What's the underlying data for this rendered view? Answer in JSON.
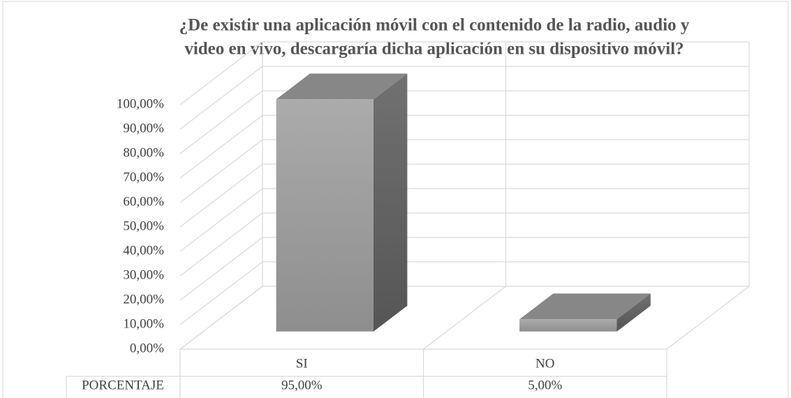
{
  "chart_data": {
    "type": "bar3d",
    "title": [
      "¿De existir una aplicación móvil con el contenido de la radio, audio y",
      "video en vivo, descargaría dicha aplicación en su dispositivo móvil?"
    ],
    "categories": [
      "SI",
      "NO"
    ],
    "series": [
      {
        "name": "PORCENTAJE",
        "color": "#999999",
        "values": [
          95,
          5
        ],
        "value_labels": [
          "95,00%",
          "5,00%"
        ]
      }
    ],
    "ylim": [
      0,
      100
    ],
    "yticks": [
      {
        "value": 0,
        "label": "0,00%"
      },
      {
        "value": 10,
        "label": "10,00%"
      },
      {
        "value": 20,
        "label": "20,00%"
      },
      {
        "value": 30,
        "label": "30,00%"
      },
      {
        "value": 40,
        "label": "40,00%"
      },
      {
        "value": 50,
        "label": "50,00%"
      },
      {
        "value": 60,
        "label": "60,00%"
      },
      {
        "value": 70,
        "label": "70,00%"
      },
      {
        "value": 80,
        "label": "80,00%"
      },
      {
        "value": 90,
        "label": "90,00%"
      },
      {
        "value": 100,
        "label": "100,00%"
      }
    ],
    "grid": true,
    "data_table": true
  }
}
